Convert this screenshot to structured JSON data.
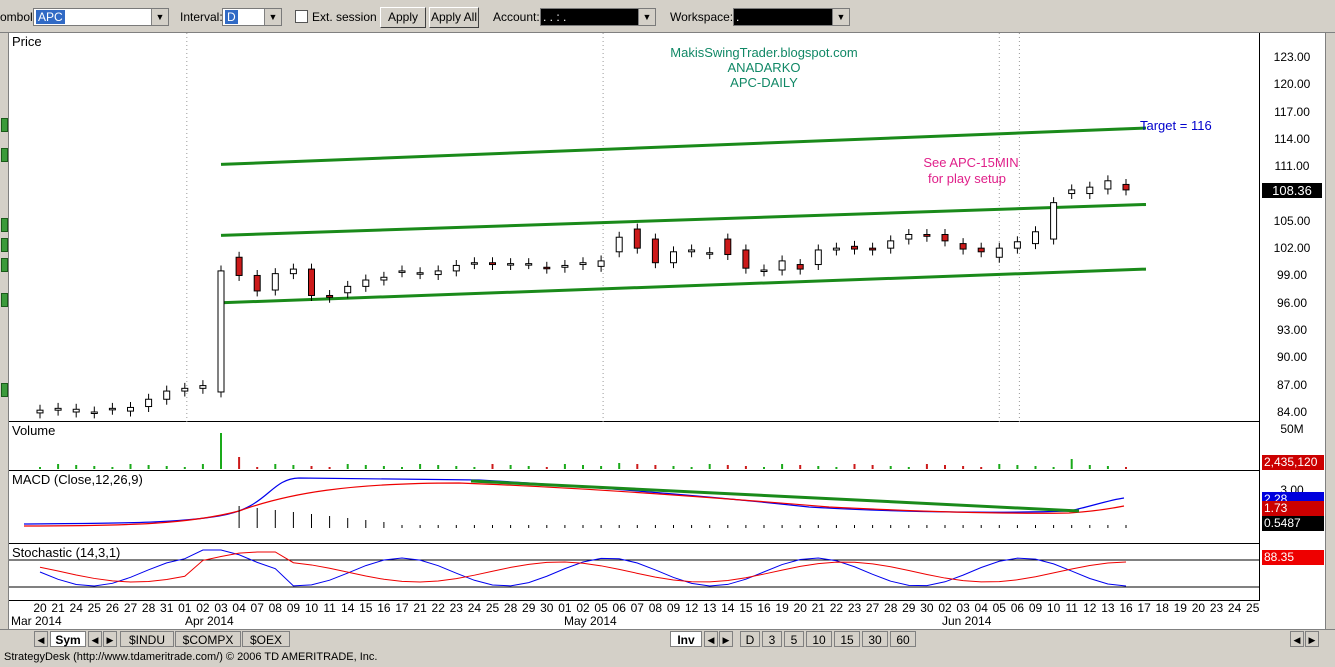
{
  "toolbar": {
    "symbol_label": "ombol:",
    "symbol_value": "APC",
    "interval_label": "Interval:",
    "interval_value": "D",
    "ext_session_label": "Ext. session",
    "apply_label": "Apply",
    "apply_all_label": "Apply All",
    "account_label": "Account:",
    "account_value": ". .  :  .",
    "workspace_label": "Workspace:",
    "workspace_value": "."
  },
  "chart": {
    "price_title": "Price",
    "volume_title": "Volume",
    "macd_title": "MACD (Close,12,26,9)",
    "stoch_title": "Stochastic (14,3,1)",
    "annotation_lines": [
      "MakisSwingTrader.blogspot.com",
      "ANADARKO",
      "APC-DAILY"
    ],
    "target_text": "Target = 116",
    "setup_lines": [
      "See APC-15MIN",
      "for play setup"
    ],
    "price_ticks": [
      "123.00",
      "120.00",
      "117.00",
      "114.00",
      "111.00",
      "108.36",
      "105.00",
      "102.00",
      "99.00",
      "96.00",
      "93.00",
      "90.00",
      "87.00",
      "84.00"
    ],
    "last_price": "108.36",
    "volume_axis": "50M",
    "volume_value": "2,435,120",
    "macd_ticks": [
      "3.00"
    ],
    "macd_value_1": "2.28",
    "macd_value_2": "1.73",
    "macd_value_3": "0.5487",
    "stoch_value": "88.35",
    "x_days": [
      "20",
      "21",
      "24",
      "25",
      "26",
      "27",
      "28",
      "31",
      "01",
      "02",
      "03",
      "04",
      "07",
      "08",
      "09",
      "10",
      "11",
      "14",
      "15",
      "16",
      "17",
      "21",
      "22",
      "23",
      "24",
      "25",
      "28",
      "29",
      "30",
      "01",
      "02",
      "05",
      "06",
      "07",
      "08",
      "09",
      "12",
      "13",
      "14",
      "15",
      "16",
      "19",
      "20",
      "21",
      "22",
      "23",
      "27",
      "28",
      "29",
      "30",
      "02",
      "03",
      "04",
      "05",
      "06",
      "09",
      "10",
      "11",
      "12",
      "13",
      "16",
      "17",
      "18",
      "19",
      "20",
      "23",
      "24",
      "25"
    ],
    "x_months": [
      "Mar 2014",
      "Apr 2014",
      "May 2014",
      "Jun 2014"
    ],
    "colors": {
      "channel": "#1a8a1a",
      "target": "#0000cc",
      "setup": "#e0208a",
      "annotation": "#118866",
      "up_candle": "#ffffff",
      "down_candle": "#cc1a1a",
      "macd": "#0000ee",
      "signal": "#ee0000"
    }
  },
  "chart_data": {
    "type": "candlestick",
    "dates": [
      "03-20",
      "03-21",
      "03-24",
      "03-25",
      "03-26",
      "03-27",
      "03-28",
      "03-31",
      "04-01",
      "04-02",
      "04-03",
      "04-04",
      "04-07",
      "04-08",
      "04-09",
      "04-10",
      "04-11",
      "04-14",
      "04-15",
      "04-16",
      "04-17",
      "04-21",
      "04-22",
      "04-23",
      "04-24",
      "04-25",
      "04-28",
      "04-29",
      "04-30",
      "05-01",
      "05-02",
      "05-05",
      "05-06",
      "05-07",
      "05-08",
      "05-09",
      "05-12",
      "05-13",
      "05-14",
      "05-15",
      "05-16",
      "05-19",
      "05-20",
      "05-21",
      "05-22",
      "05-23",
      "05-27",
      "05-28",
      "05-29",
      "05-30",
      "06-02",
      "06-03",
      "06-04",
      "06-05",
      "06-06",
      "06-09",
      "06-10",
      "06-11",
      "06-12",
      "06-13",
      "06-16"
    ],
    "open": [
      83.9,
      84.2,
      84.0,
      83.9,
      84.3,
      84.1,
      84.6,
      85.4,
      86.3,
      86.6,
      86.2,
      101.0,
      99.0,
      97.4,
      99.2,
      99.7,
      96.8,
      97.1,
      97.8,
      98.5,
      99.4,
      99.2,
      99.1,
      99.5,
      100.3,
      100.4,
      100.2,
      100.3,
      99.9,
      99.9,
      100.2,
      100.0,
      101.6,
      104.1,
      103.0,
      100.4,
      101.6,
      101.4,
      103.0,
      101.8,
      99.5,
      99.6,
      100.2,
      100.2,
      101.8,
      102.2,
      102.0,
      102.0,
      103.0,
      103.5,
      103.5,
      102.5,
      102.0,
      101.0,
      102.0,
      102.5,
      103.0,
      108.0,
      108.0,
      108.5,
      109.0
    ],
    "close": [
      84.2,
      84.4,
      84.3,
      84.0,
      84.4,
      84.5,
      85.4,
      86.3,
      86.6,
      86.9,
      99.5,
      99.0,
      97.3,
      99.2,
      99.7,
      96.8,
      96.6,
      97.8,
      98.5,
      98.8,
      99.5,
      99.3,
      99.5,
      100.1,
      100.4,
      100.2,
      100.3,
      100.3,
      99.8,
      100.1,
      100.4,
      100.6,
      103.2,
      102.0,
      100.4,
      101.6,
      101.8,
      101.5,
      101.3,
      99.8,
      99.6,
      100.6,
      99.7,
      101.8,
      102.0,
      101.9,
      101.8,
      102.8,
      103.5,
      103.3,
      102.8,
      101.9,
      101.6,
      102.0,
      102.7,
      103.8,
      107.0,
      108.4,
      108.7,
      109.4,
      108.4
    ],
    "channel_lines": [
      {
        "name": "upper",
        "from": [
          "04-03",
          111.2
        ],
        "to": [
          "06-16",
          115.2
        ]
      },
      {
        "name": "middle",
        "from": [
          "04-03",
          103.4
        ],
        "to": [
          "06-16",
          106.8
        ]
      },
      {
        "name": "lower",
        "from": [
          "04-03",
          96.0
        ],
        "to": [
          "06-16",
          99.7
        ]
      }
    ],
    "target": 116,
    "ylim": [
      83.5,
      124.5
    ]
  }
}
